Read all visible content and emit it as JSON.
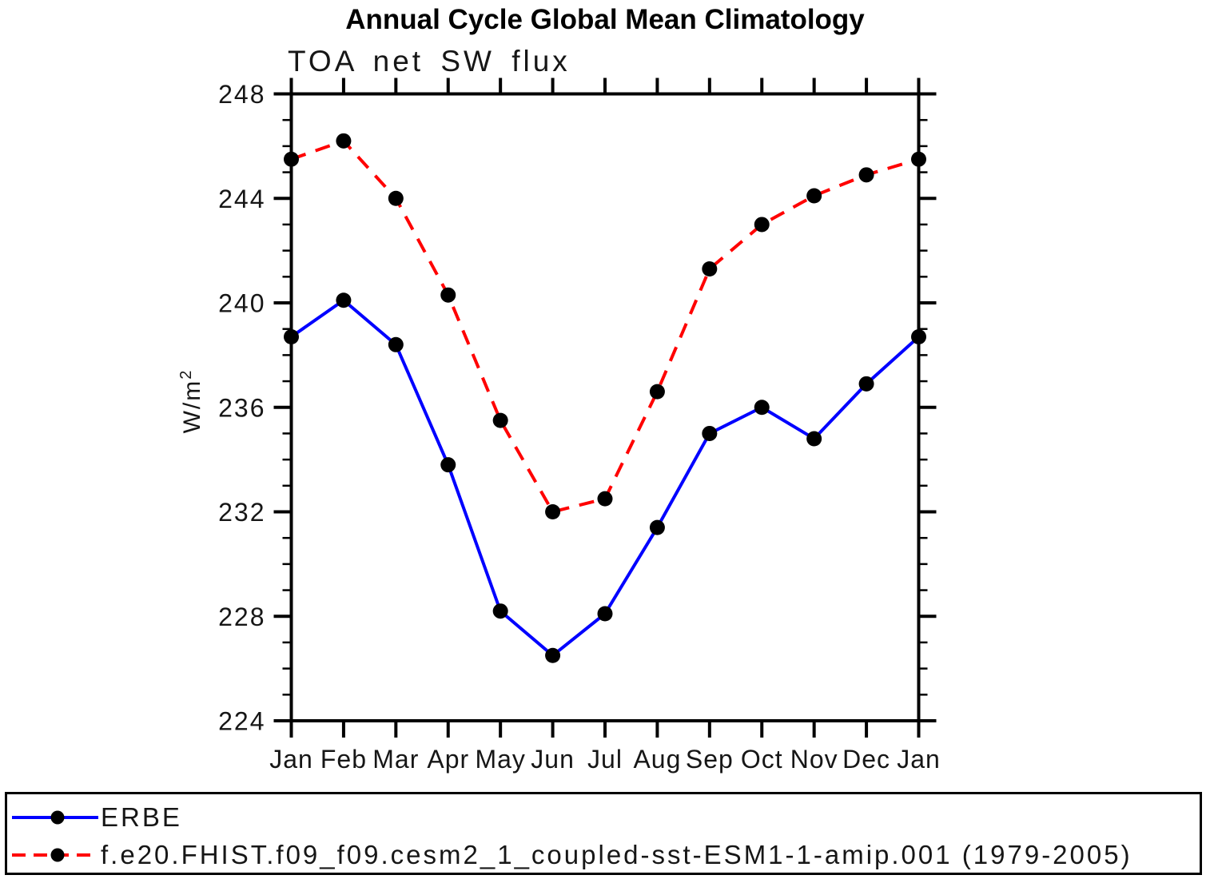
{
  "title": "Annual Cycle Global Mean Climatology",
  "chart_data": {
    "type": "line",
    "title": "Annual Cycle Global Mean Climatology",
    "subtitle": "TOA net SW flux",
    "ylabel": {
      "base": "W/m",
      "sup": "2"
    },
    "xlabel": "",
    "categories": [
      "Jan",
      "Feb",
      "Mar",
      "Apr",
      "May",
      "Jun",
      "Jul",
      "Aug",
      "Sep",
      "Oct",
      "Nov",
      "Dec",
      "Jan"
    ],
    "series": [
      {
        "name": "ERBE",
        "color": "#0000ff",
        "line_style": "solid",
        "marker": "filled-circle",
        "marker_color": "#000000",
        "values": [
          238.7,
          240.1,
          238.4,
          233.8,
          228.2,
          226.5,
          228.1,
          231.4,
          235.0,
          236.0,
          234.8,
          236.9,
          238.7
        ]
      },
      {
        "name": "f.e20.FHIST.f09_f09.cesm2_1_coupled-sst-ESM1-1-amip.001 (1979-2005)",
        "color": "#ff0000",
        "line_style": "dashed",
        "marker": "filled-circle",
        "marker_color": "#000000",
        "values": [
          245.5,
          246.2,
          244.0,
          240.3,
          235.5,
          232.0,
          232.5,
          236.6,
          241.3,
          243.0,
          244.1,
          244.9,
          245.5
        ]
      }
    ],
    "ylim": [
      224,
      248
    ],
    "ytick_interval": 4,
    "yminor_interval": 1,
    "ytick_labels": [
      "224",
      "228",
      "232",
      "236",
      "240",
      "244",
      "248"
    ],
    "grid": "off",
    "legend_position": "bottom",
    "axis_color": "#000000"
  },
  "legend": {
    "entries": [
      {
        "label": "ERBE"
      },
      {
        "label": "f.e20.FHIST.f09_f09.cesm2_1_coupled-sst-ESM1-1-amip.001 (1979-2005)"
      }
    ]
  }
}
